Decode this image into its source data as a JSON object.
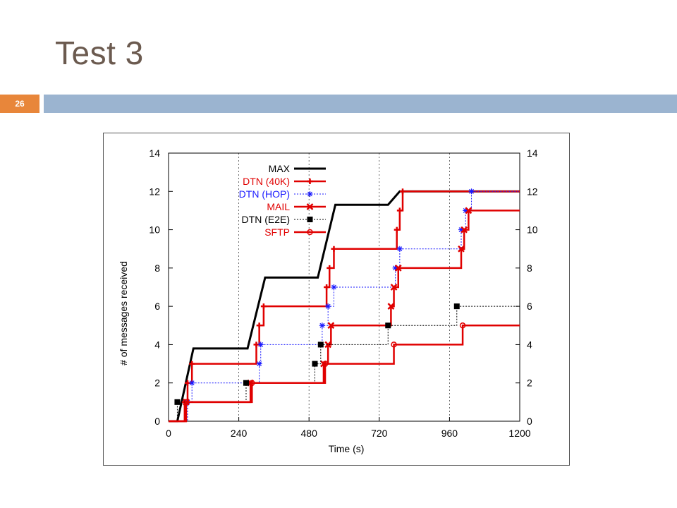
{
  "slide": {
    "title": "Test 3",
    "number": "26"
  },
  "colors": {
    "accent_orange": "#e8863a",
    "bar_blue": "#9bb4d0",
    "title_color": "#6b5a4f"
  },
  "chart_data": {
    "type": "line",
    "title": "",
    "xlabel": "Time (s)",
    "ylabel": "# of messages received",
    "xlim": [
      0,
      1200
    ],
    "ylim": [
      0,
      14
    ],
    "xticks": [
      0,
      240,
      480,
      720,
      960,
      1200
    ],
    "yticks": [
      0,
      2,
      4,
      6,
      8,
      10,
      12,
      14
    ],
    "vertical_gridlines": [
      240,
      480,
      720,
      960
    ],
    "legend_position": "top-left",
    "series": [
      {
        "name": "MAX",
        "color": "#000000",
        "style": "solid",
        "marker": "none",
        "step": false,
        "points": [
          [
            0,
            0
          ],
          [
            30,
            0
          ],
          [
            85,
            3.8
          ],
          [
            270,
            3.8
          ],
          [
            330,
            7.5
          ],
          [
            510,
            7.5
          ],
          [
            570,
            11.3
          ],
          [
            750,
            11.3
          ],
          [
            790,
            12
          ],
          [
            1200,
            12
          ]
        ]
      },
      {
        "name": "DTN (40K)",
        "color": "#e00000",
        "style": "solid",
        "marker": "plus",
        "step": true,
        "points": [
          [
            0,
            0
          ],
          [
            40,
            0
          ],
          [
            55,
            1
          ],
          [
            65,
            2
          ],
          [
            80,
            3
          ],
          [
            290,
            3
          ],
          [
            300,
            4
          ],
          [
            310,
            5
          ],
          [
            325,
            6
          ],
          [
            530,
            6
          ],
          [
            540,
            7
          ],
          [
            550,
            8
          ],
          [
            565,
            9
          ],
          [
            770,
            9
          ],
          [
            780,
            10
          ],
          [
            790,
            11
          ],
          [
            800,
            12
          ],
          [
            1200,
            12
          ]
        ]
      },
      {
        "name": "DTN (HOP)",
        "color": "#1a1aff",
        "style": "dotted",
        "marker": "star",
        "step": true,
        "points": [
          [
            0,
            0
          ],
          [
            45,
            0
          ],
          [
            65,
            1
          ],
          [
            80,
            2
          ],
          [
            300,
            2
          ],
          [
            310,
            3
          ],
          [
            315,
            4
          ],
          [
            520,
            4
          ],
          [
            525,
            5
          ],
          [
            545,
            6
          ],
          [
            565,
            7
          ],
          [
            765,
            7
          ],
          [
            775,
            8
          ],
          [
            790,
            9
          ],
          [
            990,
            9
          ],
          [
            1000,
            10
          ],
          [
            1015,
            11
          ],
          [
            1035,
            12
          ],
          [
            1200,
            12
          ]
        ]
      },
      {
        "name": "MAIL",
        "color": "#e00000",
        "style": "solid",
        "marker": "x",
        "step": true,
        "points": [
          [
            0,
            0
          ],
          [
            55,
            0
          ],
          [
            60,
            1
          ],
          [
            270,
            1
          ],
          [
            280,
            2
          ],
          [
            520,
            2
          ],
          [
            530,
            3
          ],
          [
            545,
            4
          ],
          [
            555,
            5
          ],
          [
            750,
            5
          ],
          [
            760,
            6
          ],
          [
            770,
            7
          ],
          [
            785,
            8
          ],
          [
            990,
            8
          ],
          [
            1000,
            9
          ],
          [
            1010,
            10
          ],
          [
            1025,
            11
          ],
          [
            1200,
            11
          ]
        ]
      },
      {
        "name": "DTN (E2E)",
        "color": "#000000",
        "style": "dotted",
        "marker": "square",
        "step": true,
        "points": [
          [
            0,
            0
          ],
          [
            25,
            0
          ],
          [
            30,
            1
          ],
          [
            260,
            1
          ],
          [
            265,
            2
          ],
          [
            495,
            2
          ],
          [
            500,
            3
          ],
          [
            520,
            4
          ],
          [
            745,
            4
          ],
          [
            750,
            5
          ],
          [
            980,
            5
          ],
          [
            985,
            6
          ],
          [
            1200,
            6
          ]
        ]
      },
      {
        "name": "SFTP",
        "color": "#e00000",
        "style": "solid",
        "marker": "circle",
        "step": true,
        "points": [
          [
            0,
            0
          ],
          [
            50,
            0
          ],
          [
            60,
            1
          ],
          [
            270,
            1
          ],
          [
            285,
            2
          ],
          [
            525,
            2
          ],
          [
            535,
            3
          ],
          [
            765,
            3
          ],
          [
            770,
            4
          ],
          [
            1000,
            4
          ],
          [
            1005,
            5
          ],
          [
            1200,
            5
          ]
        ]
      }
    ]
  }
}
